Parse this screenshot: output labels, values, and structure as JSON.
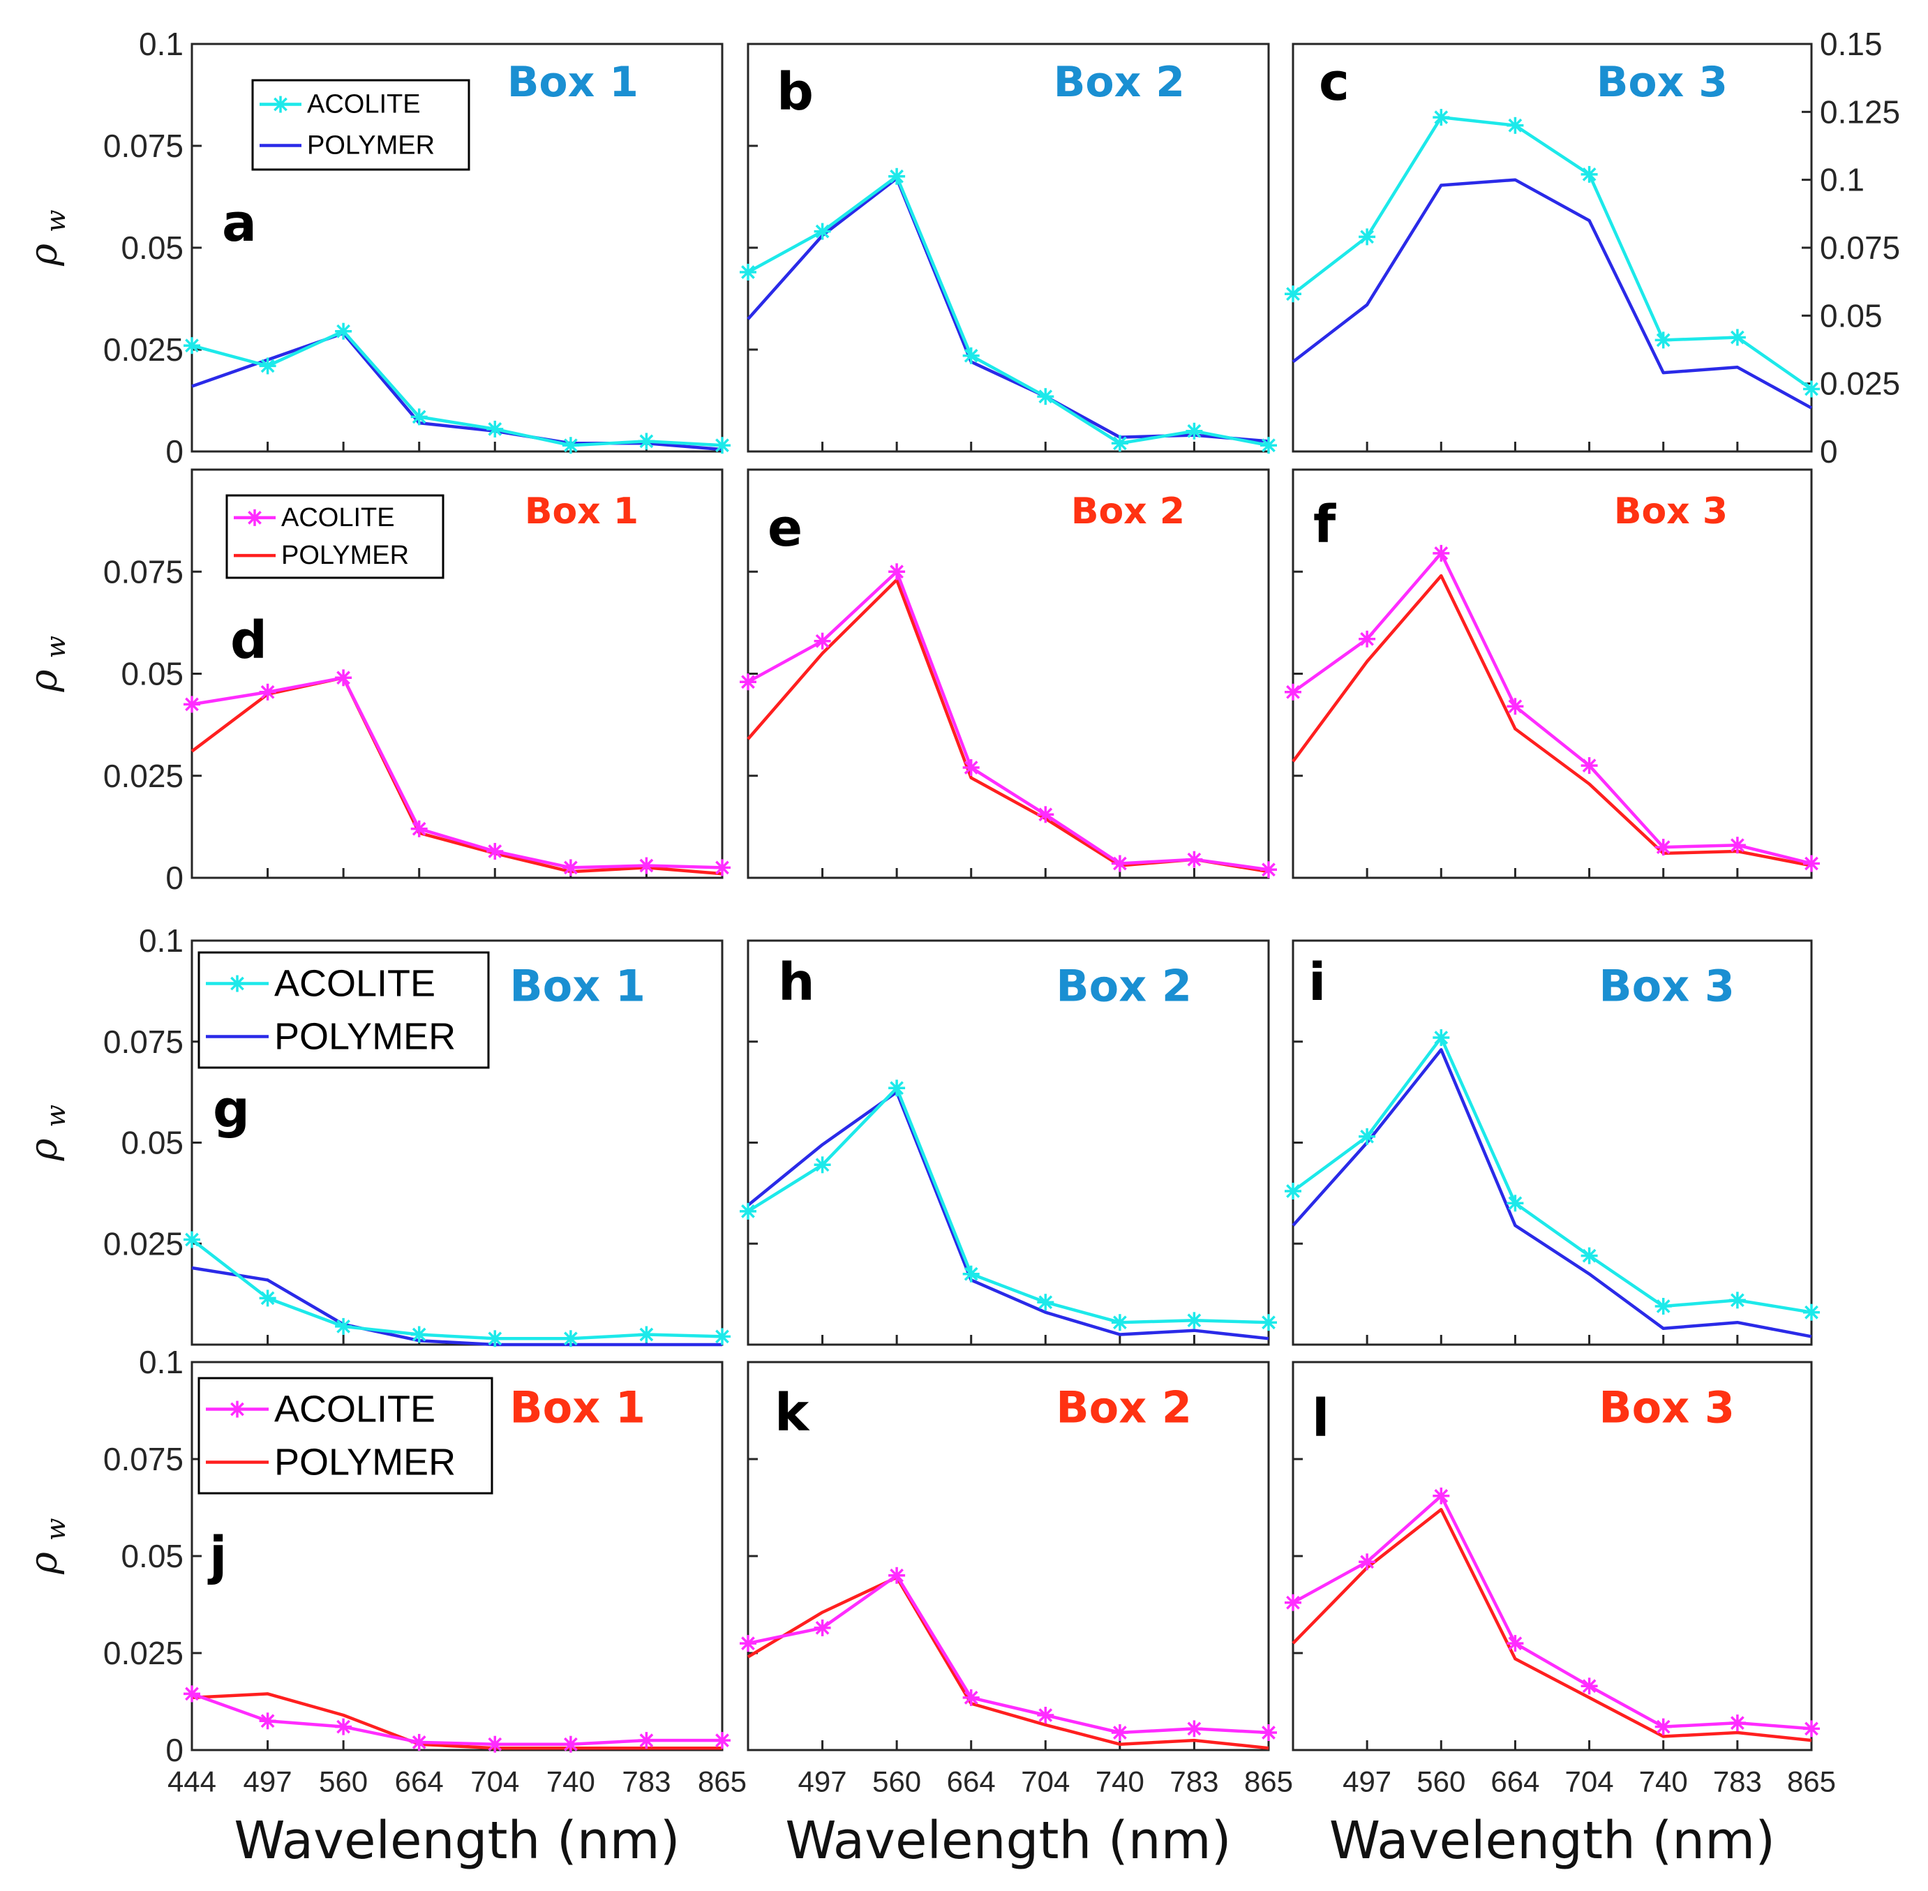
{
  "colors": {
    "acolite_blue": "#1de9ea",
    "polymer_blue": "#2a2ae8",
    "acolite_red": "#ff2cff",
    "polymer_red": "#ff1f1f",
    "box_blue": "#1a8fd2",
    "box_red": "#ff3212"
  },
  "legend_labels": [
    "ACOLITE",
    "POLYMER"
  ],
  "ylabel_main": "ρ",
  "ylabel_sub": "w",
  "xlabel": "Wavelength (nm)",
  "chart_data": [
    {
      "id": "a",
      "type": "line",
      "title": "Box 1",
      "ylim": [
        0,
        0.1
      ],
      "palette": "blue",
      "yticks": [
        0,
        0.025,
        0.05,
        0.075,
        0.1
      ],
      "ytick_labels": [
        "0",
        "0.025",
        "0.05",
        "0.075",
        "0.1"
      ],
      "ytick_side": "left",
      "xtick_labels": [],
      "x": [
        444,
        497,
        560,
        664,
        704,
        740,
        783,
        865
      ],
      "series": [
        {
          "name": "ACOLITE",
          "values": [
            0.026,
            0.021,
            0.0295,
            0.0085,
            0.0055,
            0.0015,
            0.0025,
            0.0015
          ]
        },
        {
          "name": "POLYMER",
          "values": [
            0.016,
            0.0225,
            0.029,
            0.007,
            0.005,
            0.002,
            0.002,
            0.0005
          ]
        }
      ],
      "legend": "upper-left",
      "xlabel": "",
      "ylabel": "ρw"
    },
    {
      "id": "b",
      "type": "line",
      "title": "Box 2",
      "ylim": [
        0,
        0.1
      ],
      "palette": "blue",
      "yticks": [
        0,
        0.025,
        0.05,
        0.075,
        0.1
      ],
      "ytick_labels": [],
      "ytick_side": "left",
      "xtick_labels": [],
      "x": [
        444,
        497,
        560,
        664,
        704,
        740,
        783,
        865
      ],
      "series": [
        {
          "name": "ACOLITE",
          "values": [
            0.044,
            0.054,
            0.0675,
            0.0235,
            0.0135,
            0.002,
            0.005,
            0.0015
          ]
        },
        {
          "name": "POLYMER",
          "values": [
            0.0325,
            0.053,
            0.067,
            0.022,
            0.0135,
            0.0035,
            0.004,
            0.0025
          ]
        }
      ],
      "legend": "none",
      "xlabel": "",
      "ylabel": ""
    },
    {
      "id": "c",
      "type": "line",
      "title": "Box 3",
      "ylim": [
        0,
        0.15
      ],
      "palette": "blue",
      "yticks": [
        0,
        0.025,
        0.05,
        0.075,
        0.1,
        0.125,
        0.15
      ],
      "ytick_labels": [
        "0",
        "0.025",
        "0.05",
        "0.075",
        "0.1",
        "0.125",
        "0.15"
      ],
      "ytick_side": "right",
      "xtick_labels": [],
      "x": [
        444,
        497,
        560,
        664,
        704,
        740,
        783,
        865
      ],
      "series": [
        {
          "name": "ACOLITE",
          "values": [
            0.058,
            0.079,
            0.123,
            0.12,
            0.102,
            0.041,
            0.042,
            0.023
          ]
        },
        {
          "name": "POLYMER",
          "values": [
            0.033,
            0.054,
            0.098,
            0.1,
            0.085,
            0.029,
            0.031,
            0.016
          ]
        }
      ],
      "legend": "none",
      "xlabel": "",
      "ylabel": ""
    },
    {
      "id": "d",
      "type": "line",
      "title": "Box 1",
      "ylim": [
        0,
        0.1
      ],
      "palette": "red",
      "yticks": [
        0,
        0.025,
        0.05,
        0.075
      ],
      "ytick_labels": [
        "0",
        "0.025",
        "0.05",
        "0.075"
      ],
      "ytick_side": "left",
      "xtick_labels": [],
      "x": [
        444,
        497,
        560,
        664,
        704,
        740,
        783,
        865
      ],
      "series": [
        {
          "name": "ACOLITE",
          "values": [
            0.0425,
            0.0455,
            0.049,
            0.012,
            0.0065,
            0.0025,
            0.003,
            0.0025
          ]
        },
        {
          "name": "POLYMER",
          "values": [
            0.031,
            0.045,
            0.049,
            0.011,
            0.006,
            0.0015,
            0.0025,
            0.001
          ]
        }
      ],
      "legend": "upper-left",
      "xlabel": "",
      "ylabel": "ρw"
    },
    {
      "id": "e",
      "type": "line",
      "title": "Box 2",
      "ylim": [
        0,
        0.1
      ],
      "palette": "red",
      "yticks": [
        0,
        0.025,
        0.05,
        0.075
      ],
      "ytick_labels": [],
      "ytick_side": "left",
      "xtick_labels": [],
      "x": [
        444,
        497,
        560,
        664,
        704,
        740,
        783,
        865
      ],
      "series": [
        {
          "name": "ACOLITE",
          "values": [
            0.048,
            0.058,
            0.075,
            0.027,
            0.0155,
            0.0035,
            0.0045,
            0.002
          ]
        },
        {
          "name": "POLYMER",
          "values": [
            0.034,
            0.055,
            0.073,
            0.0245,
            0.0145,
            0.003,
            0.0045,
            0.0015
          ]
        }
      ],
      "legend": "none",
      "xlabel": "",
      "ylabel": ""
    },
    {
      "id": "f",
      "type": "line",
      "title": "Box 3",
      "ylim": [
        0,
        0.1
      ],
      "palette": "red",
      "yticks": [
        0,
        0.025,
        0.05,
        0.075
      ],
      "ytick_labels": [],
      "ytick_side": "left",
      "xtick_labels": [],
      "x": [
        444,
        497,
        560,
        664,
        704,
        740,
        783,
        865
      ],
      "series": [
        {
          "name": "ACOLITE",
          "values": [
            0.0455,
            0.0585,
            0.0795,
            0.042,
            0.0275,
            0.0075,
            0.008,
            0.0035
          ]
        },
        {
          "name": "POLYMER",
          "values": [
            0.0285,
            0.053,
            0.074,
            0.0365,
            0.023,
            0.006,
            0.0065,
            0.003
          ]
        }
      ],
      "legend": "none",
      "xlabel": "",
      "ylabel": ""
    },
    {
      "id": "g",
      "type": "line",
      "title": "Box 1",
      "ylim": [
        0,
        0.1
      ],
      "palette": "blue",
      "yticks": [
        0.025,
        0.05,
        0.075,
        0.1
      ],
      "ytick_labels": [
        "0.025",
        "0.05",
        "0.075",
        "0.1"
      ],
      "ytick_side": "left",
      "xtick_labels": [],
      "x": [
        444,
        497,
        560,
        664,
        704,
        740,
        783,
        865
      ],
      "series": [
        {
          "name": "ACOLITE",
          "values": [
            0.026,
            0.0115,
            0.0045,
            0.0025,
            0.0015,
            0.0015,
            0.0025,
            0.002
          ]
        },
        {
          "name": "POLYMER",
          "values": [
            0.019,
            0.016,
            0.005,
            0.001,
            0.0,
            0.0,
            0.0,
            0.0
          ]
        }
      ],
      "legend": "upper-left",
      "xlabel": "",
      "ylabel": "ρw"
    },
    {
      "id": "h",
      "type": "line",
      "title": "Box 2",
      "ylim": [
        0,
        0.1
      ],
      "palette": "blue",
      "yticks": [
        0,
        0.025,
        0.05,
        0.075,
        0.1
      ],
      "ytick_labels": [],
      "ytick_side": "left",
      "xtick_labels": [],
      "x": [
        444,
        497,
        560,
        664,
        704,
        740,
        783,
        865
      ],
      "series": [
        {
          "name": "ACOLITE",
          "values": [
            0.033,
            0.0445,
            0.0635,
            0.0175,
            0.0105,
            0.0055,
            0.006,
            0.0055
          ]
        },
        {
          "name": "POLYMER",
          "values": [
            0.0345,
            0.0495,
            0.0625,
            0.016,
            0.008,
            0.0025,
            0.0035,
            0.0015
          ]
        }
      ],
      "legend": "none",
      "xlabel": "",
      "ylabel": ""
    },
    {
      "id": "i",
      "type": "line",
      "title": "Box 3",
      "ylim": [
        0,
        0.1
      ],
      "palette": "blue",
      "yticks": [
        0,
        0.025,
        0.05,
        0.075,
        0.1
      ],
      "ytick_labels": [],
      "ytick_side": "left",
      "xtick_labels": [],
      "x": [
        444,
        497,
        560,
        664,
        704,
        740,
        783,
        865
      ],
      "series": [
        {
          "name": "ACOLITE",
          "values": [
            0.038,
            0.0515,
            0.076,
            0.035,
            0.022,
            0.0095,
            0.011,
            0.008
          ]
        },
        {
          "name": "POLYMER",
          "values": [
            0.0295,
            0.05,
            0.073,
            0.0295,
            0.0175,
            0.004,
            0.0055,
            0.002
          ]
        }
      ],
      "legend": "none",
      "xlabel": "",
      "ylabel": ""
    },
    {
      "id": "j",
      "type": "line",
      "title": "Box 1",
      "ylim": [
        0,
        0.1
      ],
      "palette": "red",
      "yticks": [
        0,
        0.025,
        0.05,
        0.075,
        0.1
      ],
      "ytick_labels": [
        "0",
        "0.025",
        "0.05",
        "0.075",
        "0.1"
      ],
      "ytick_side": "left",
      "xtick_labels": [
        "444",
        "497",
        "560",
        "664",
        "704",
        "740",
        "783",
        "865"
      ],
      "x": [
        444,
        497,
        560,
        664,
        704,
        740,
        783,
        865
      ],
      "series": [
        {
          "name": "ACOLITE",
          "values": [
            0.0145,
            0.0075,
            0.006,
            0.002,
            0.0015,
            0.0015,
            0.0025,
            0.0025
          ]
        },
        {
          "name": "POLYMER",
          "values": [
            0.0135,
            0.0145,
            0.009,
            0.0015,
            0.0005,
            0.0005,
            0.0005,
            0.0005
          ]
        }
      ],
      "legend": "upper-left",
      "xlabel": "Wavelength (nm)",
      "ylabel": "ρw"
    },
    {
      "id": "k",
      "type": "line",
      "title": "Box 2",
      "ylim": [
        0,
        0.1
      ],
      "palette": "red",
      "yticks": [
        0,
        0.025,
        0.05,
        0.075,
        0.1
      ],
      "ytick_labels": [],
      "ytick_side": "left",
      "xtick_labels": [
        "",
        "497",
        "560",
        "664",
        "704",
        "740",
        "783",
        "865"
      ],
      "x": [
        444,
        497,
        560,
        664,
        704,
        740,
        783,
        865
      ],
      "series": [
        {
          "name": "ACOLITE",
          "values": [
            0.0275,
            0.0315,
            0.045,
            0.0135,
            0.009,
            0.0045,
            0.0055,
            0.0045
          ]
        },
        {
          "name": "POLYMER",
          "values": [
            0.024,
            0.0355,
            0.0445,
            0.012,
            0.0065,
            0.0015,
            0.0025,
            0.0005
          ]
        }
      ],
      "legend": "none",
      "xlabel": "Wavelength (nm)",
      "ylabel": ""
    },
    {
      "id": "l",
      "type": "line",
      "title": "Box 3",
      "ylim": [
        0,
        0.1
      ],
      "palette": "red",
      "yticks": [
        0,
        0.025,
        0.05,
        0.075,
        0.1
      ],
      "ytick_labels": [],
      "ytick_side": "left",
      "xtick_labels": [
        "",
        "497",
        "560",
        "664",
        "704",
        "740",
        "783",
        "865"
      ],
      "x": [
        444,
        497,
        560,
        664,
        704,
        740,
        783,
        865
      ],
      "series": [
        {
          "name": "ACOLITE",
          "values": [
            0.038,
            0.0485,
            0.0655,
            0.0275,
            0.0165,
            0.006,
            0.007,
            0.0055
          ]
        },
        {
          "name": "POLYMER",
          "values": [
            0.0275,
            0.047,
            0.062,
            0.0235,
            0.0135,
            0.0035,
            0.0045,
            0.0025
          ]
        }
      ],
      "legend": "none",
      "xlabel": "Wavelength (nm)",
      "ylabel": ""
    }
  ]
}
